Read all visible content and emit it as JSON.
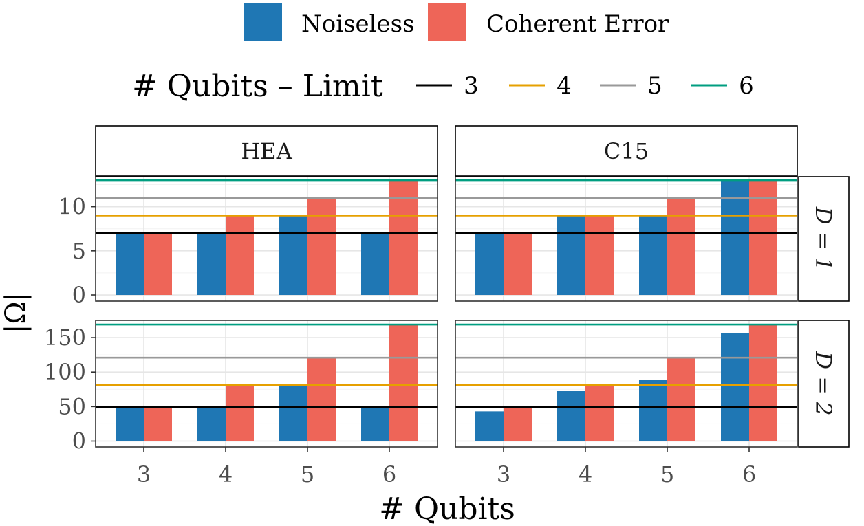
{
  "legend_fill": {
    "items": [
      {
        "label": "Noiseless",
        "color": "#1f77b4"
      },
      {
        "label": "Coherent Error",
        "color": "#ee6558"
      }
    ]
  },
  "legend_limit": {
    "title": "# Qubits – Limit",
    "items": [
      {
        "label": "3",
        "color": "#000000"
      },
      {
        "label": "4",
        "color": "#e6a000"
      },
      {
        "label": "5",
        "color": "#999999"
      },
      {
        "label": "6",
        "color": "#009e80"
      }
    ]
  },
  "chart_data": [
    {
      "type": "bar",
      "facet_col": "HEA",
      "facet_row": "D = 1",
      "categories": [
        "3",
        "4",
        "5",
        "6"
      ],
      "series": [
        {
          "name": "Noiseless",
          "values": [
            7,
            7,
            9,
            7
          ]
        },
        {
          "name": "Coherent Error",
          "values": [
            7,
            9,
            11,
            13
          ]
        }
      ],
      "hlines": [
        7,
        9,
        11,
        13
      ],
      "ylim": [
        -0.7,
        13.4
      ],
      "yticks": [
        0,
        5,
        10
      ]
    },
    {
      "type": "bar",
      "facet_col": "C15",
      "facet_row": "D = 1",
      "categories": [
        "3",
        "4",
        "5",
        "6"
      ],
      "series": [
        {
          "name": "Noiseless",
          "values": [
            7,
            9,
            9,
            13
          ]
        },
        {
          "name": "Coherent Error",
          "values": [
            7,
            9,
            11,
            13
          ]
        }
      ],
      "hlines": [
        7,
        9,
        11,
        13
      ],
      "ylim": [
        -0.7,
        13.4
      ],
      "yticks": [
        0,
        5,
        10
      ]
    },
    {
      "type": "bar",
      "facet_col": "HEA",
      "facet_row": "D = 2",
      "categories": [
        "3",
        "4",
        "5",
        "6"
      ],
      "series": [
        {
          "name": "Noiseless",
          "values": [
            49,
            49,
            81,
            49
          ]
        },
        {
          "name": "Coherent Error",
          "values": [
            49,
            81,
            121,
            169
          ]
        }
      ],
      "hlines": [
        49,
        81,
        121,
        169
      ],
      "ylim": [
        -8.5,
        175
      ],
      "yticks": [
        0,
        50,
        100,
        150
      ]
    },
    {
      "type": "bar",
      "facet_col": "C15",
      "facet_row": "D = 2",
      "categories": [
        "3",
        "4",
        "5",
        "6"
      ],
      "series": [
        {
          "name": "Noiseless",
          "values": [
            43,
            73,
            89,
            157
          ]
        },
        {
          "name": "Coherent Error",
          "values": [
            49,
            81,
            121,
            169
          ]
        }
      ],
      "hlines": [
        49,
        81,
        121,
        169
      ],
      "ylim": [
        -8.5,
        175
      ],
      "yticks": [
        0,
        50,
        100,
        150
      ]
    }
  ],
  "axes": {
    "xlabel": "# Qubits",
    "ylabel": "|Ω|"
  },
  "facets": {
    "cols": [
      "HEA",
      "C15"
    ],
    "rows": [
      "D = 1",
      "D = 2"
    ]
  }
}
